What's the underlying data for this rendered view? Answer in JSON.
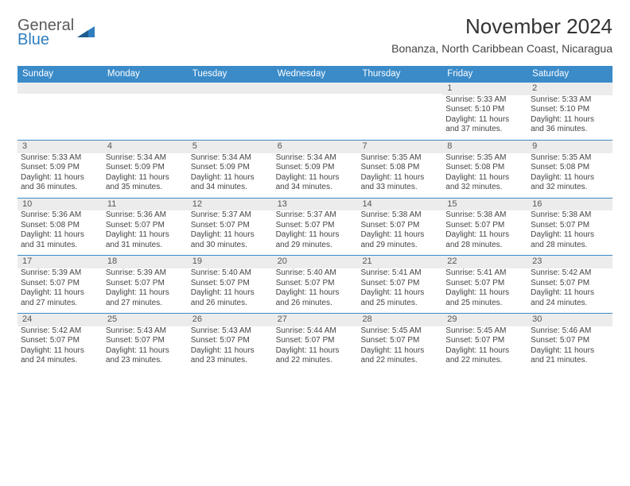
{
  "brand": {
    "general": "General",
    "blue": "Blue"
  },
  "title": "November 2024",
  "location": "Bonanza, North Caribbean Coast, Nicaragua",
  "colors": {
    "header_bg": "#3b8bc9",
    "header_text": "#ffffff",
    "daynum_bg": "#ececec",
    "row_border": "#3b8bc9",
    "text": "#444444",
    "brand_blue": "#2f7ebf",
    "brand_gray": "#5a5a5a"
  },
  "day_headers": [
    "Sunday",
    "Monday",
    "Tuesday",
    "Wednesday",
    "Thursday",
    "Friday",
    "Saturday"
  ],
  "weeks": [
    [
      {
        "n": "",
        "lines": []
      },
      {
        "n": "",
        "lines": []
      },
      {
        "n": "",
        "lines": []
      },
      {
        "n": "",
        "lines": []
      },
      {
        "n": "",
        "lines": []
      },
      {
        "n": "1",
        "lines": [
          "Sunrise: 5:33 AM",
          "Sunset: 5:10 PM",
          "Daylight: 11 hours and 37 minutes."
        ]
      },
      {
        "n": "2",
        "lines": [
          "Sunrise: 5:33 AM",
          "Sunset: 5:10 PM",
          "Daylight: 11 hours and 36 minutes."
        ]
      }
    ],
    [
      {
        "n": "3",
        "lines": [
          "Sunrise: 5:33 AM",
          "Sunset: 5:09 PM",
          "Daylight: 11 hours and 36 minutes."
        ]
      },
      {
        "n": "4",
        "lines": [
          "Sunrise: 5:34 AM",
          "Sunset: 5:09 PM",
          "Daylight: 11 hours and 35 minutes."
        ]
      },
      {
        "n": "5",
        "lines": [
          "Sunrise: 5:34 AM",
          "Sunset: 5:09 PM",
          "Daylight: 11 hours and 34 minutes."
        ]
      },
      {
        "n": "6",
        "lines": [
          "Sunrise: 5:34 AM",
          "Sunset: 5:09 PM",
          "Daylight: 11 hours and 34 minutes."
        ]
      },
      {
        "n": "7",
        "lines": [
          "Sunrise: 5:35 AM",
          "Sunset: 5:08 PM",
          "Daylight: 11 hours and 33 minutes."
        ]
      },
      {
        "n": "8",
        "lines": [
          "Sunrise: 5:35 AM",
          "Sunset: 5:08 PM",
          "Daylight: 11 hours and 32 minutes."
        ]
      },
      {
        "n": "9",
        "lines": [
          "Sunrise: 5:35 AM",
          "Sunset: 5:08 PM",
          "Daylight: 11 hours and 32 minutes."
        ]
      }
    ],
    [
      {
        "n": "10",
        "lines": [
          "Sunrise: 5:36 AM",
          "Sunset: 5:08 PM",
          "Daylight: 11 hours and 31 minutes."
        ]
      },
      {
        "n": "11",
        "lines": [
          "Sunrise: 5:36 AM",
          "Sunset: 5:07 PM",
          "Daylight: 11 hours and 31 minutes."
        ]
      },
      {
        "n": "12",
        "lines": [
          "Sunrise: 5:37 AM",
          "Sunset: 5:07 PM",
          "Daylight: 11 hours and 30 minutes."
        ]
      },
      {
        "n": "13",
        "lines": [
          "Sunrise: 5:37 AM",
          "Sunset: 5:07 PM",
          "Daylight: 11 hours and 29 minutes."
        ]
      },
      {
        "n": "14",
        "lines": [
          "Sunrise: 5:38 AM",
          "Sunset: 5:07 PM",
          "Daylight: 11 hours and 29 minutes."
        ]
      },
      {
        "n": "15",
        "lines": [
          "Sunrise: 5:38 AM",
          "Sunset: 5:07 PM",
          "Daylight: 11 hours and 28 minutes."
        ]
      },
      {
        "n": "16",
        "lines": [
          "Sunrise: 5:38 AM",
          "Sunset: 5:07 PM",
          "Daylight: 11 hours and 28 minutes."
        ]
      }
    ],
    [
      {
        "n": "17",
        "lines": [
          "Sunrise: 5:39 AM",
          "Sunset: 5:07 PM",
          "Daylight: 11 hours and 27 minutes."
        ]
      },
      {
        "n": "18",
        "lines": [
          "Sunrise: 5:39 AM",
          "Sunset: 5:07 PM",
          "Daylight: 11 hours and 27 minutes."
        ]
      },
      {
        "n": "19",
        "lines": [
          "Sunrise: 5:40 AM",
          "Sunset: 5:07 PM",
          "Daylight: 11 hours and 26 minutes."
        ]
      },
      {
        "n": "20",
        "lines": [
          "Sunrise: 5:40 AM",
          "Sunset: 5:07 PM",
          "Daylight: 11 hours and 26 minutes."
        ]
      },
      {
        "n": "21",
        "lines": [
          "Sunrise: 5:41 AM",
          "Sunset: 5:07 PM",
          "Daylight: 11 hours and 25 minutes."
        ]
      },
      {
        "n": "22",
        "lines": [
          "Sunrise: 5:41 AM",
          "Sunset: 5:07 PM",
          "Daylight: 11 hours and 25 minutes."
        ]
      },
      {
        "n": "23",
        "lines": [
          "Sunrise: 5:42 AM",
          "Sunset: 5:07 PM",
          "Daylight: 11 hours and 24 minutes."
        ]
      }
    ],
    [
      {
        "n": "24",
        "lines": [
          "Sunrise: 5:42 AM",
          "Sunset: 5:07 PM",
          "Daylight: 11 hours and 24 minutes."
        ]
      },
      {
        "n": "25",
        "lines": [
          "Sunrise: 5:43 AM",
          "Sunset: 5:07 PM",
          "Daylight: 11 hours and 23 minutes."
        ]
      },
      {
        "n": "26",
        "lines": [
          "Sunrise: 5:43 AM",
          "Sunset: 5:07 PM",
          "Daylight: 11 hours and 23 minutes."
        ]
      },
      {
        "n": "27",
        "lines": [
          "Sunrise: 5:44 AM",
          "Sunset: 5:07 PM",
          "Daylight: 11 hours and 22 minutes."
        ]
      },
      {
        "n": "28",
        "lines": [
          "Sunrise: 5:45 AM",
          "Sunset: 5:07 PM",
          "Daylight: 11 hours and 22 minutes."
        ]
      },
      {
        "n": "29",
        "lines": [
          "Sunrise: 5:45 AM",
          "Sunset: 5:07 PM",
          "Daylight: 11 hours and 22 minutes."
        ]
      },
      {
        "n": "30",
        "lines": [
          "Sunrise: 5:46 AM",
          "Sunset: 5:07 PM",
          "Daylight: 11 hours and 21 minutes."
        ]
      }
    ]
  ]
}
